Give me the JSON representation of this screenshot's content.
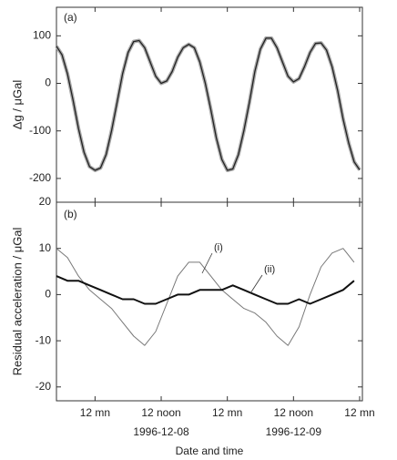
{
  "chart_data": [
    {
      "type": "line",
      "panel_label": "(a)",
      "ylabel": "Δg / μGal",
      "x": [
        -7,
        -6,
        -5,
        -4,
        -3,
        -2,
        -1,
        0,
        1,
        2,
        3,
        4,
        5,
        6,
        7,
        8,
        9,
        10,
        11,
        12,
        13,
        14,
        15,
        16,
        17,
        18,
        19,
        20,
        21,
        22,
        23,
        24,
        25,
        26,
        27,
        28,
        29,
        30,
        31,
        32,
        33,
        34,
        35,
        36,
        37,
        38,
        39,
        40,
        41,
        42,
        43,
        44,
        45,
        46,
        47,
        48
      ],
      "values": [
        78,
        60,
        20,
        -35,
        -95,
        -145,
        -175,
        -183,
        -178,
        -150,
        -100,
        -40,
        20,
        65,
        88,
        90,
        75,
        45,
        15,
        0,
        5,
        25,
        55,
        75,
        82,
        75,
        45,
        0,
        -55,
        -115,
        -160,
        -183,
        -180,
        -150,
        -100,
        -40,
        25,
        72,
        95,
        95,
        75,
        45,
        15,
        3,
        10,
        35,
        65,
        84,
        85,
        70,
        35,
        -15,
        -75,
        -125,
        -165,
        -182
      ],
      "color": "#222222",
      "xlim": [
        -7,
        48.5
      ],
      "ylim": [
        -250,
        160
      ],
      "yticks": [
        100,
        0,
        -100,
        -200
      ]
    },
    {
      "type": "line",
      "panel_label": "(b)",
      "ylabel": "Residual acceleration / μGal",
      "xlabel": "Date and time",
      "x": [
        -7,
        -5,
        -3,
        -1,
        1,
        3,
        5,
        7,
        9,
        11,
        13,
        15,
        17,
        19,
        21,
        23,
        25,
        27,
        29,
        31,
        33,
        35,
        37,
        39,
        41,
        43,
        45,
        47
      ],
      "series": [
        {
          "name": "(i)",
          "color": "#777777",
          "values": [
            10,
            8,
            4,
            1,
            -1,
            -3,
            -6,
            -9,
            -11,
            -8,
            -2,
            4,
            7,
            7,
            4,
            1,
            -1,
            -3,
            -4,
            -6,
            -9,
            -11,
            -7,
            0,
            6,
            9,
            10,
            7
          ]
        },
        {
          "name": "(ii)",
          "color": "#111111",
          "values": [
            4,
            3,
            3,
            2,
            1,
            0,
            -1,
            -1,
            -2,
            -2,
            -1,
            0,
            0,
            1,
            1,
            1,
            2,
            1,
            0,
            -1,
            -2,
            -2,
            -1,
            -2,
            -1,
            0,
            1,
            3
          ]
        }
      ],
      "xlim": [
        -7,
        48.5
      ],
      "ylim": [
        -23,
        20
      ],
      "yticks": [
        20,
        10,
        0,
        -10,
        -20
      ],
      "xticks": [
        {
          "value": 0,
          "label": "12 mn"
        },
        {
          "value": 12,
          "label": "12 noon"
        },
        {
          "value": 24,
          "label": "12 mn"
        },
        {
          "value": 36,
          "label": "12 noon"
        },
        {
          "value": 48,
          "label": "12 mn"
        }
      ],
      "date_labels": [
        {
          "x": 12,
          "label": "1996-12-08"
        },
        {
          "x": 36,
          "label": "1996-12-09"
        }
      ]
    }
  ]
}
